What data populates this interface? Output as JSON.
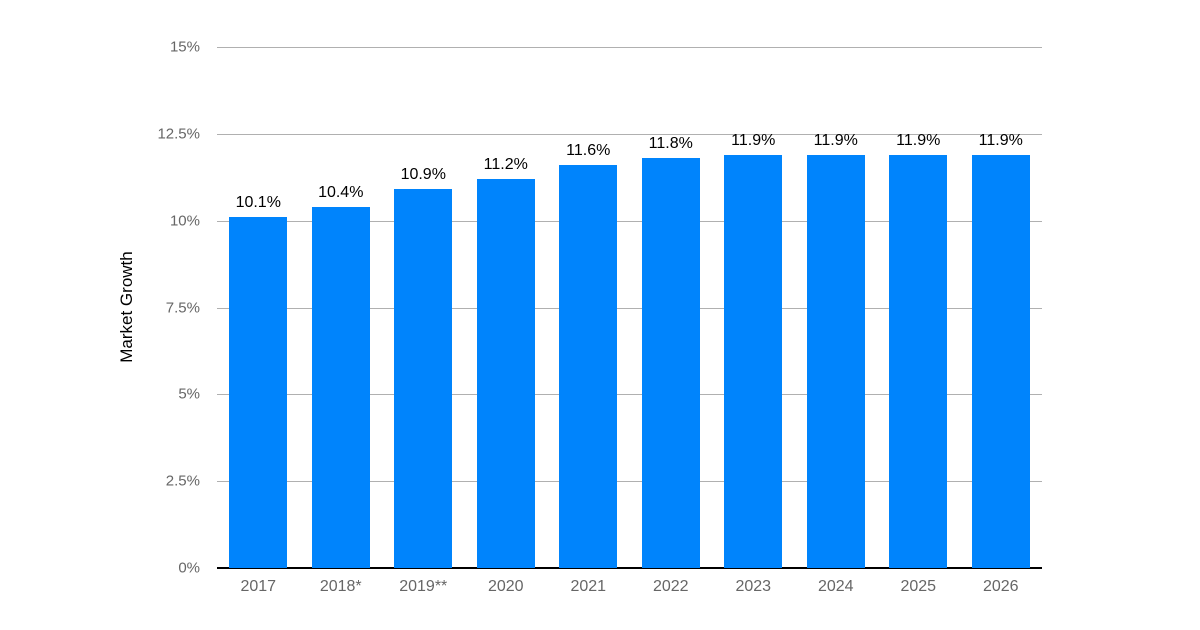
{
  "colors": {
    "bar": "#0084fc",
    "gridline": "#b0b0b0",
    "axis_line": "#000000",
    "tick_label": "#666666",
    "data_label": "#000000",
    "background": "#ffffff"
  },
  "chart_data": {
    "type": "bar",
    "title": "",
    "xlabel": "",
    "ylabel": "Market Growth",
    "categories": [
      "2017",
      "2018*",
      "2019**",
      "2020",
      "2021",
      "2022",
      "2023",
      "2024",
      "2025",
      "2026"
    ],
    "values": [
      10.1,
      10.4,
      10.9,
      11.2,
      11.6,
      11.8,
      11.9,
      11.9,
      11.9,
      11.9
    ],
    "data_labels": [
      "10.1%",
      "10.4%",
      "10.9%",
      "11.2%",
      "11.6%",
      "11.8%",
      "11.9%",
      "11.9%",
      "11.9%",
      "11.9%"
    ],
    "ylim": [
      0,
      15
    ],
    "y_ticks": [
      {
        "label": "15%",
        "value": 15
      },
      {
        "label": "12.5%",
        "value": 12.5
      },
      {
        "label": "10%",
        "value": 10
      },
      {
        "label": "7.5%",
        "value": 7.5
      },
      {
        "label": "5%",
        "value": 5
      },
      {
        "label": "2.5%",
        "value": 2.5
      },
      {
        "label": "0%",
        "value": 0
      }
    ],
    "grid": true,
    "legend": false,
    "legend_position": "none"
  }
}
